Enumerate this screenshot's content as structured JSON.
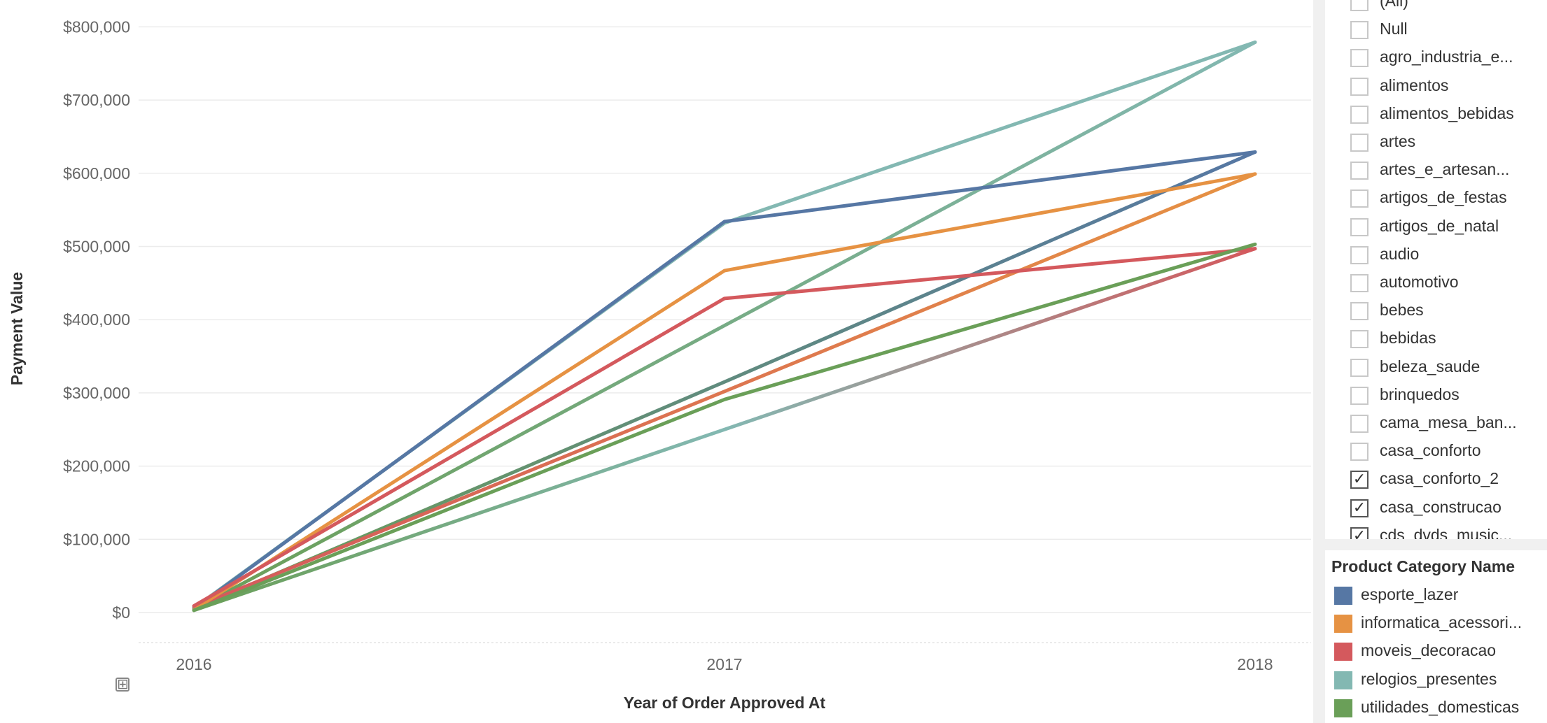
{
  "chart_data": {
    "type": "line",
    "xlabel": "Year of Order Approved At",
    "ylabel": "Payment Value",
    "x": [
      "2016",
      "2017",
      "2018"
    ],
    "ylim": [
      -40000,
      800000
    ],
    "y_ticks": [
      "$800,000",
      "$700,000",
      "$600,000",
      "$500,000",
      "$400,000",
      "$300,000",
      "$200,000",
      "$100,000",
      "$0"
    ],
    "y_tick_values": [
      800000,
      700000,
      600000,
      500000,
      400000,
      300000,
      200000,
      100000,
      0
    ],
    "grid": "horizontal",
    "series": [
      {
        "name": "relogios_presentes",
        "color": "#83b8b2",
        "values": [
          6000,
          532000,
          779000
        ]
      },
      {
        "name": "esporte_lazer",
        "color": "#5677a4",
        "values": [
          5000,
          534000,
          629000
        ]
      },
      {
        "name": "informatica_acessorios",
        "color": "#e69243",
        "values": [
          4000,
          467000,
          599000
        ]
      },
      {
        "name": "moveis_decoracao",
        "color": "#d4595d",
        "values": [
          9000,
          429000,
          497000
        ]
      },
      {
        "name": "utilidades_domesticas",
        "color": "#6a9f58",
        "values": [
          3000,
          291000,
          503000
        ]
      },
      {
        "name": "",
        "gradient": [
          "#6a9f58",
          "#83b8b2"
        ],
        "values": [
          4000,
          392000,
          779000
        ]
      },
      {
        "name": "",
        "gradient": [
          "#6a9f58",
          "#5677a4"
        ],
        "values": [
          5000,
          315000,
          629000
        ]
      },
      {
        "name": "",
        "gradient": [
          "#d4595d",
          "#e69243"
        ],
        "values": [
          7000,
          302000,
          599000
        ]
      },
      {
        "name": "",
        "gradient": [
          "#6a9f58",
          "#83b8b2",
          "#d4595d"
        ],
        "values": [
          3000,
          250000,
          497000
        ]
      }
    ]
  },
  "filter": {
    "items": [
      {
        "label": "(All)",
        "checked": false
      },
      {
        "label": "Null",
        "checked": false
      },
      {
        "label": "agro_industria_e...",
        "checked": false
      },
      {
        "label": "alimentos",
        "checked": false
      },
      {
        "label": "alimentos_bebidas",
        "checked": false
      },
      {
        "label": "artes",
        "checked": false
      },
      {
        "label": "artes_e_artesan...",
        "checked": false
      },
      {
        "label": "artigos_de_festas",
        "checked": false
      },
      {
        "label": "artigos_de_natal",
        "checked": false
      },
      {
        "label": "audio",
        "checked": false
      },
      {
        "label": "automotivo",
        "checked": false
      },
      {
        "label": "bebes",
        "checked": false
      },
      {
        "label": "bebidas",
        "checked": false
      },
      {
        "label": "beleza_saude",
        "checked": false
      },
      {
        "label": "brinquedos",
        "checked": false
      },
      {
        "label": "cama_mesa_ban...",
        "checked": false
      },
      {
        "label": "casa_conforto",
        "checked": false
      },
      {
        "label": "casa_conforto_2",
        "checked": true
      },
      {
        "label": "casa_construcao",
        "checked": true
      },
      {
        "label": "cds_dvds_music...",
        "checked": true
      }
    ],
    "check_glyph": "✓"
  },
  "legend": {
    "title": "Product Category Name",
    "items": [
      {
        "label": "esporte_lazer",
        "color": "#5677a4"
      },
      {
        "label": "informatica_acessori...",
        "color": "#e69243"
      },
      {
        "label": "moveis_decoracao",
        "color": "#d4595d"
      },
      {
        "label": "relogios_presentes",
        "color": "#83b8b2"
      },
      {
        "label": "utilidades_domesticas",
        "color": "#6a9f58"
      }
    ]
  },
  "icons": {
    "add": "⊞"
  }
}
